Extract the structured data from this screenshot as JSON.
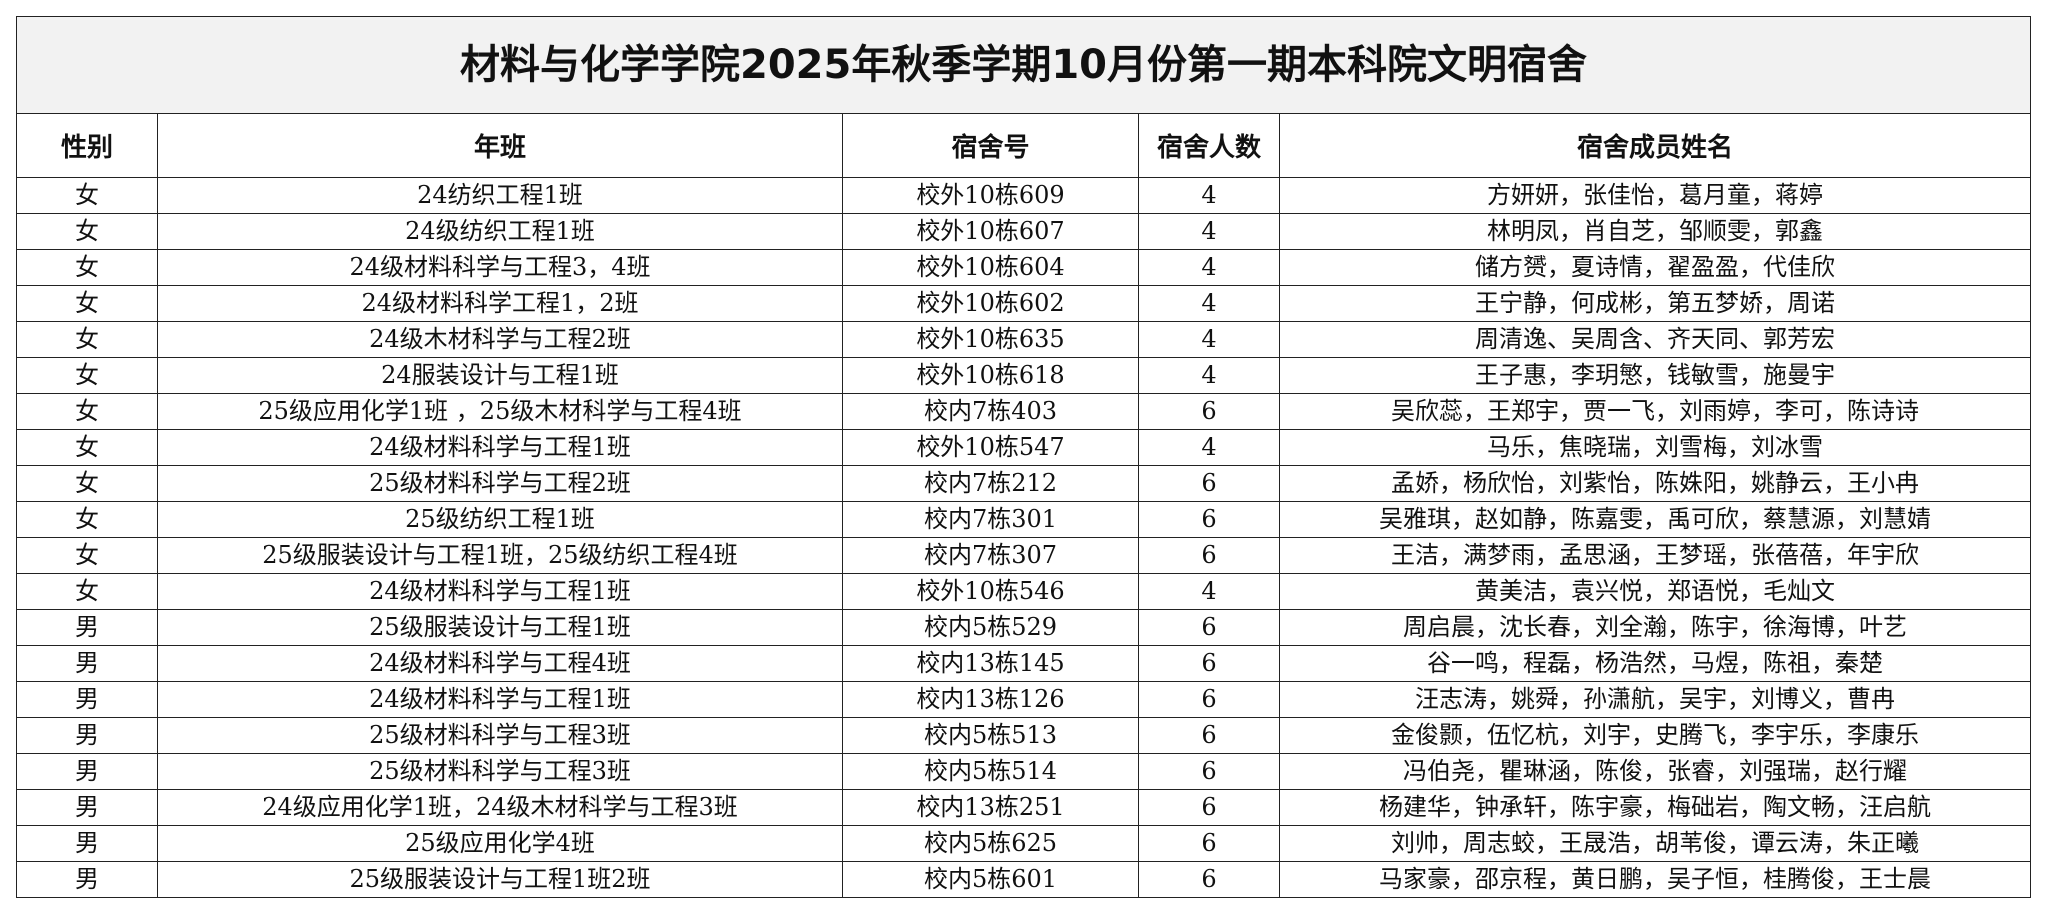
{
  "title": "材料与化学学院2025年秋季学期10月份第一期本科院文明宿舍",
  "table": {
    "header": [
      "性别",
      "年班",
      "宿舍号",
      "宿舍人数",
      "宿舍成员姓名"
    ],
    "rows": [
      [
        "女",
        "24纺织工程1班",
        "校外10栋609",
        4,
        "方妍妍，张佳怡，葛月童，蒋婷"
      ],
      [
        "女",
        "24级纺织工程1班",
        "校外10栋607",
        4,
        "林明凤，肖自芝，邹顺雯，郭鑫"
      ],
      [
        "女",
        "24级材料科学与工程3，4班",
        "校外10栋604",
        4,
        "储方赟，夏诗情，翟盈盈，代佳欣"
      ],
      [
        "女",
        "24级材料科学工程1，2班",
        "校外10栋602",
        4,
        "王宁静，何成彬，第五梦娇，周诺"
      ],
      [
        "女",
        "24级木材科学与工程2班",
        "校外10栋635",
        4,
        "周清逸、吴周含、齐天同、郭芳宏"
      ],
      [
        "女",
        "24服装设计与工程1班",
        "校外10栋618",
        4,
        "王子惠，李玥慜，钱敏雪，施曼宇"
      ],
      [
        "女",
        "25级应用化学1班 ，25级木材科学与工程4班",
        "校内7栋403",
        6,
        "吴欣蕊，王郑宇，贾一飞，刘雨婷，李可，陈诗诗"
      ],
      [
        "女",
        "24级材料科学与工程1班",
        "校外10栋547",
        4,
        "马乐，焦晓瑞，刘雪梅，刘冰雪"
      ],
      [
        "女",
        "25级材料科学与工程2班",
        "校内7栋212",
        6,
        "孟娇，杨欣怡，刘紫怡，陈姝阳，姚静云，王小冉"
      ],
      [
        "女",
        "25级纺织工程1班",
        "校内7栋301",
        6,
        "吴雅琪，赵如静，陈嘉雯，禹可欣，蔡慧源，刘慧婧"
      ],
      [
        "女",
        "25级服装设计与工程1班，25级纺织工程4班",
        "校内7栋307",
        6,
        "王洁，满梦雨，孟思涵，王梦瑶，张蓓蓓，年宇欣"
      ],
      [
        "女",
        "24级材料科学与工程1班",
        "校外10栋546",
        4,
        "黄美洁，袁兴悦，郑语悦，毛灿文"
      ],
      [
        "男",
        "25级服装设计与工程1班",
        "校内5栋529",
        6,
        "周启晨，沈长春，刘全瀚，陈宇，徐海博，叶艺"
      ],
      [
        "男",
        "24级材料科学与工程4班",
        "校内13栋145",
        6,
        "谷一鸣，程磊，杨浩然，马煜，陈祖，秦楚"
      ],
      [
        "男",
        "24级材料科学与工程1班",
        "校内13栋126",
        6,
        "汪志涛，姚舜，孙潇航，吴宇，刘博义，曹冉"
      ],
      [
        "男",
        "25级材料科学与工程3班",
        "校内5栋513",
        6,
        "金俊颢，伍忆杭，刘宇，史腾飞，李宇乐，李康乐"
      ],
      [
        "男",
        "25级材料科学与工程3班",
        "校内5栋514",
        6,
        "冯伯尧，瞿琳涵，陈俊，张睿，刘强瑞，赵行耀"
      ],
      [
        "男",
        "24级应用化学1班，24级木材科学与工程3班",
        "校内13栋251",
        6,
        "杨建华，钟承轩，陈宇豪，梅础岩，陶文畅，汪启航"
      ],
      [
        "男",
        "25级应用化学4班",
        "校内5栋625",
        6,
        "刘帅，周志蛟，王晟浩，胡苇俊，谭云涛，朱正曦"
      ],
      [
        "男",
        "25级服装设计与工程1班2班",
        "校内5栋601",
        6,
        "马家豪，邵京程，黄日鹏，吴子恒，桂腾俊，王士晨"
      ]
    ]
  }
}
